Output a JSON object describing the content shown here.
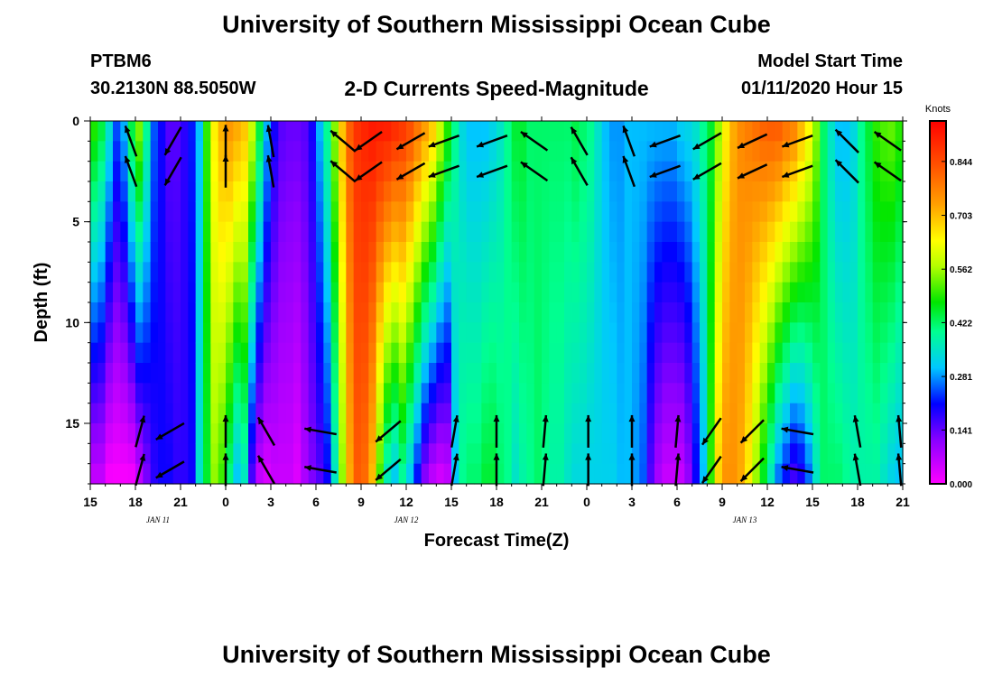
{
  "header": {
    "title": "University of Southern Mississippi Ocean Cube",
    "station": "PTBM6",
    "coords": "30.2130N 88.5050W",
    "plot_title": "2-D Currents Speed-Magnitude",
    "model_label": "Model Start Time",
    "model_time": "01/11/2020 Hour 15"
  },
  "footer": {
    "title": "University of Southern Mississippi Ocean Cube"
  },
  "chart_data": {
    "type": "heatmap",
    "title": "2-D Currents Speed-Magnitude",
    "xlabel": "Forecast Time(Z)",
    "ylabel": "Depth (ft)",
    "x_hours": [
      0,
      54
    ],
    "x_tick_labels": [
      "15",
      "18",
      "21",
      "0",
      "3",
      "6",
      "9",
      "12",
      "15",
      "18",
      "21",
      "0",
      "3",
      "6",
      "9",
      "12",
      "15",
      "18",
      "21"
    ],
    "date_labels": [
      {
        "text": "JAN 11",
        "hour": 4.5
      },
      {
        "text": "JAN 12",
        "hour": 21
      },
      {
        "text": "JAN 13",
        "hour": 43.5
      }
    ],
    "ylim": [
      0,
      18
    ],
    "y_tick_labels": [
      "0",
      "5",
      "10",
      "15"
    ],
    "colorbar": {
      "unit": "Knots",
      "range": [
        0,
        0.95
      ],
      "labels": [
        "0.000",
        "0.141",
        "0.281",
        "0.422",
        "0.562",
        "0.703",
        "0.844"
      ]
    },
    "time_hours": [
      0,
      0.5,
      1,
      1.5,
      2,
      2.5,
      3,
      3.5,
      4,
      4.5,
      5,
      5.5,
      6,
      6.5,
      7,
      7.5,
      8,
      8.5,
      9,
      9.5,
      10,
      10.5,
      11,
      11.5,
      12,
      12.5,
      13,
      13.5,
      14,
      14.5,
      15,
      15.5,
      16,
      16.5,
      17,
      17.5,
      18,
      18.5,
      19,
      19.5,
      20,
      20.5,
      21,
      21.5,
      22,
      22.5,
      23,
      23.5,
      24,
      24.5,
      25,
      25.5,
      26,
      26.5,
      27,
      27.5,
      28,
      28.5,
      29,
      29.5,
      30,
      30.5,
      31,
      31.5,
      32,
      32.5,
      33,
      33.5,
      34,
      34.5,
      35,
      35.5,
      36,
      36.5,
      37,
      37.5,
      38,
      38.5,
      39,
      39.5,
      40,
      40.5,
      41,
      41.5,
      42,
      42.5,
      43,
      43.5,
      44,
      44.5,
      45,
      45.5,
      46,
      46.5,
      47,
      47.5,
      48,
      48.5,
      49,
      49.5,
      50,
      50.5,
      51,
      51.5,
      52,
      52.5,
      53,
      53.5,
      54
    ],
    "speed_surface": [
      0.5,
      0.45,
      0.35,
      0.25,
      0.3,
      0.45,
      0.55,
      0.4,
      0.25,
      0.2,
      0.15,
      0.15,
      0.18,
      0.22,
      0.3,
      0.5,
      0.65,
      0.72,
      0.75,
      0.73,
      0.7,
      0.6,
      0.45,
      0.3,
      0.2,
      0.15,
      0.14,
      0.14,
      0.15,
      0.2,
      0.3,
      0.4,
      0.55,
      0.7,
      0.82,
      0.88,
      0.9,
      0.92,
      0.92,
      0.92,
      0.9,
      0.88,
      0.85,
      0.8,
      0.75,
      0.7,
      0.6,
      0.5,
      0.4,
      0.33,
      0.3,
      0.3,
      0.3,
      0.32,
      0.35,
      0.4,
      0.45,
      0.45,
      0.42,
      0.42,
      0.42,
      0.42,
      0.42,
      0.42,
      0.44,
      0.42,
      0.4,
      0.35,
      0.3,
      0.28,
      0.28,
      0.3,
      0.3,
      0.3,
      0.3,
      0.3,
      0.3,
      0.3,
      0.32,
      0.33,
      0.35,
      0.4,
      0.45,
      0.55,
      0.65,
      0.72,
      0.76,
      0.78,
      0.8,
      0.82,
      0.83,
      0.83,
      0.8,
      0.78,
      0.72,
      0.65,
      0.55,
      0.42,
      0.35,
      0.3,
      0.3,
      0.33,
      0.4,
      0.45,
      0.5,
      0.52,
      0.53,
      0.5,
      0.5
    ],
    "speed_bottom": [
      0.05,
      0.05,
      0.0,
      0.0,
      0.0,
      0.0,
      0.05,
      0.12,
      0.18,
      0.2,
      0.2,
      0.18,
      0.18,
      0.2,
      0.35,
      0.45,
      0.55,
      0.5,
      0.4,
      0.3,
      0.35,
      0.15,
      0.05,
      0.03,
      0.05,
      0.05,
      0.05,
      0.03,
      0.08,
      0.12,
      0.15,
      0.2,
      0.35,
      0.55,
      0.72,
      0.82,
      0.8,
      0.7,
      0.5,
      0.35,
      0.3,
      0.38,
      0.3,
      0.2,
      0.1,
      0.05,
      0.03,
      0.05,
      0.3,
      0.4,
      0.42,
      0.42,
      0.45,
      0.45,
      0.42,
      0.4,
      0.35,
      0.38,
      0.4,
      0.42,
      0.4,
      0.38,
      0.38,
      0.35,
      0.33,
      0.33,
      0.32,
      0.32,
      0.32,
      0.32,
      0.3,
      0.3,
      0.28,
      0.25,
      0.15,
      0.08,
      0.05,
      0.05,
      0.05,
      0.1,
      0.2,
      0.3,
      0.5,
      0.68,
      0.75,
      0.75,
      0.72,
      0.65,
      0.55,
      0.45,
      0.35,
      0.25,
      0.2,
      0.15,
      0.18,
      0.25,
      0.35,
      0.42,
      0.42,
      0.42,
      0.4,
      0.38,
      0.38,
      0.38,
      0.38,
      0.35,
      0.32,
      0.3,
      0.28
    ],
    "arrows_surface": [
      {
        "hour": 2.7,
        "dir_deg": 340
      },
      {
        "hour": 5.5,
        "dir_deg": 210
      },
      {
        "hour": 9.0,
        "dir_deg": 0
      },
      {
        "hour": 12.0,
        "dir_deg": 350
      },
      {
        "hour": 16.8,
        "dir_deg": 310
      },
      {
        "hour": 18.5,
        "dir_deg": 235
      },
      {
        "hour": 21.3,
        "dir_deg": 240
      },
      {
        "hour": 23.5,
        "dir_deg": 250
      },
      {
        "hour": 26.7,
        "dir_deg": 250
      },
      {
        "hour": 29.5,
        "dir_deg": 305
      },
      {
        "hour": 32.5,
        "dir_deg": 330
      },
      {
        "hour": 35.8,
        "dir_deg": 340
      },
      {
        "hour": 38.2,
        "dir_deg": 250
      },
      {
        "hour": 41.0,
        "dir_deg": 240
      },
      {
        "hour": 44.0,
        "dir_deg": 245
      },
      {
        "hour": 47.0,
        "dir_deg": 250
      },
      {
        "hour": 50.3,
        "dir_deg": 315
      },
      {
        "hour": 53.0,
        "dir_deg": 305
      }
    ],
    "arrows_bottom": [
      {
        "hour": 3.3,
        "dir_deg": 15
      },
      {
        "hour": 5.3,
        "dir_deg": 240
      },
      {
        "hour": 9.0,
        "dir_deg": 0
      },
      {
        "hour": 11.7,
        "dir_deg": 330
      },
      {
        "hour": 15.3,
        "dir_deg": 280
      },
      {
        "hour": 19.8,
        "dir_deg": 230
      },
      {
        "hour": 24.2,
        "dir_deg": 10
      },
      {
        "hour": 27.0,
        "dir_deg": 0
      },
      {
        "hour": 30.2,
        "dir_deg": 5
      },
      {
        "hour": 33.1,
        "dir_deg": 0
      },
      {
        "hour": 36.0,
        "dir_deg": 0
      },
      {
        "hour": 39.0,
        "dir_deg": 5
      },
      {
        "hour": 41.3,
        "dir_deg": 215
      },
      {
        "hour": 44.0,
        "dir_deg": 225
      },
      {
        "hour": 47.0,
        "dir_deg": 280
      },
      {
        "hour": 51.0,
        "dir_deg": 350
      },
      {
        "hour": 53.8,
        "dir_deg": 355
      }
    ]
  }
}
